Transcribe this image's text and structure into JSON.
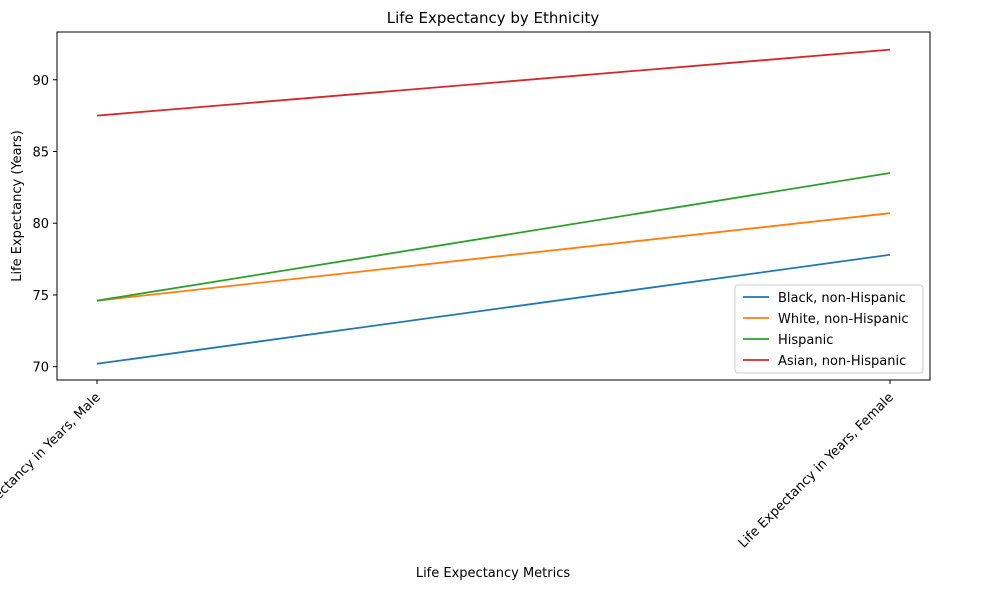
{
  "chart_data": {
    "type": "line",
    "title": "Life Expectancy by Ethnicity",
    "xlabel": "Life Expectancy Metrics",
    "ylabel": "Life Expectancy (Years)",
    "categories": [
      "Life Expectancy in Years, Male",
      "Life Expectancy in Years, Female"
    ],
    "ylim": [
      69.07,
      93.33
    ],
    "yticks": [
      70,
      75,
      80,
      85,
      90
    ],
    "grid": false,
    "legend_position": "lower right",
    "series": [
      {
        "name": "Black, non-Hispanic",
        "values": [
          70.2,
          77.8
        ],
        "color": "#1f77b4"
      },
      {
        "name": "White, non-Hispanic",
        "values": [
          74.6,
          80.7
        ],
        "color": "#ff7f0e"
      },
      {
        "name": "Hispanic",
        "values": [
          74.6,
          83.5
        ],
        "color": "#2ca02c"
      },
      {
        "name": "Asian, non-Hispanic",
        "values": [
          87.5,
          92.1
        ],
        "color": "#d62728"
      }
    ]
  }
}
